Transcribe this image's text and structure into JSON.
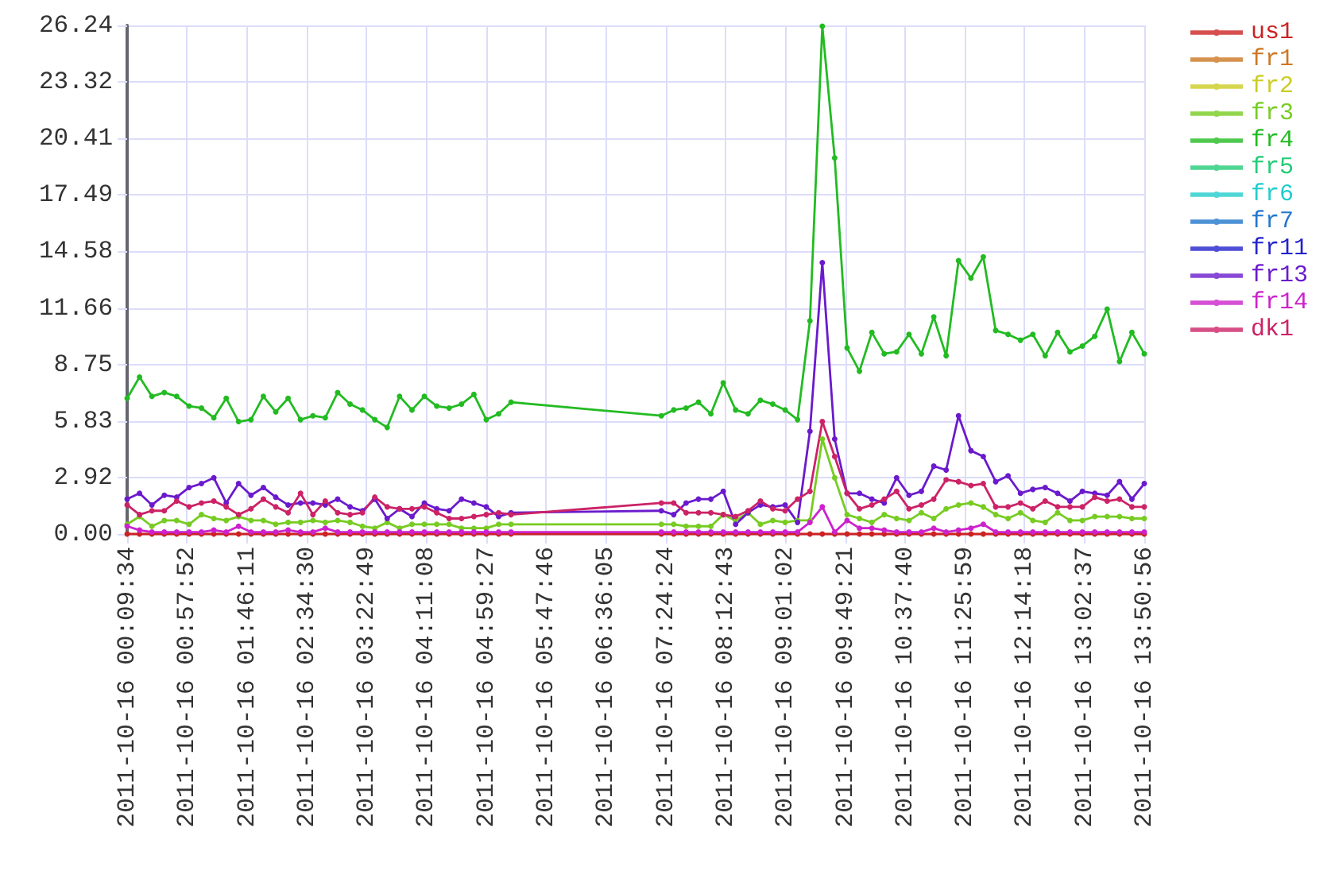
{
  "chart_data": {
    "type": "line",
    "x": [
      "2011-10-16T00:09:34",
      "2011-10-16T00:19:34",
      "2011-10-16T00:29:34",
      "2011-10-16T00:39:34",
      "2011-10-16T00:49:34",
      "2011-10-16T00:59:34",
      "2011-10-16T01:09:34",
      "2011-10-16T01:19:34",
      "2011-10-16T01:29:34",
      "2011-10-16T01:39:34",
      "2011-10-16T01:49:34",
      "2011-10-16T01:59:34",
      "2011-10-16T02:09:34",
      "2011-10-16T02:19:34",
      "2011-10-16T02:29:34",
      "2011-10-16T02:39:34",
      "2011-10-16T02:49:34",
      "2011-10-16T02:59:34",
      "2011-10-16T03:09:34",
      "2011-10-16T03:19:34",
      "2011-10-16T03:29:34",
      "2011-10-16T03:39:34",
      "2011-10-16T03:49:34",
      "2011-10-16T03:59:34",
      "2011-10-16T04:09:34",
      "2011-10-16T04:19:34",
      "2011-10-16T04:29:34",
      "2011-10-16T04:39:34",
      "2011-10-16T04:49:34",
      "2011-10-16T04:59:34",
      "2011-10-16T05:09:34",
      "2011-10-16T05:19:34",
      "2011-10-16T07:20:56",
      "2011-10-16T07:30:56",
      "2011-10-16T07:40:56",
      "2011-10-16T07:50:56",
      "2011-10-16T08:00:56",
      "2011-10-16T08:10:56",
      "2011-10-16T08:20:56",
      "2011-10-16T08:30:56",
      "2011-10-16T08:40:56",
      "2011-10-16T08:50:56",
      "2011-10-16T09:00:56",
      "2011-10-16T09:10:56",
      "2011-10-16T09:20:56",
      "2011-10-16T09:30:56",
      "2011-10-16T09:40:56",
      "2011-10-16T09:50:56",
      "2011-10-16T10:00:56",
      "2011-10-16T10:10:56",
      "2011-10-16T10:20:56",
      "2011-10-16T10:30:56",
      "2011-10-16T10:40:56",
      "2011-10-16T10:50:56",
      "2011-10-16T11:00:56",
      "2011-10-16T11:10:56",
      "2011-10-16T11:20:56",
      "2011-10-16T11:30:56",
      "2011-10-16T11:40:56",
      "2011-10-16T11:50:56",
      "2011-10-16T12:00:56",
      "2011-10-16T12:10:56",
      "2011-10-16T12:20:56",
      "2011-10-16T12:30:56",
      "2011-10-16T12:40:56",
      "2011-10-16T12:50:56",
      "2011-10-16T13:00:56",
      "2011-10-16T13:10:56",
      "2011-10-16T13:20:56",
      "2011-10-16T13:30:56",
      "2011-10-16T13:40:56",
      "2011-10-16T13:50:56"
    ],
    "series": [
      {
        "name": "us1",
        "color": "#cc2222",
        "values": [
          0,
          0,
          0,
          0,
          0,
          0,
          0,
          0,
          0,
          0,
          0,
          0,
          0,
          0,
          0,
          0,
          0,
          0,
          0,
          0,
          0,
          0,
          0,
          0,
          0,
          0,
          0,
          0,
          0,
          0,
          0,
          0,
          0,
          0,
          0,
          0,
          0,
          0,
          0,
          0,
          0,
          0,
          0,
          0,
          0,
          0,
          0,
          0,
          0,
          0,
          0,
          0,
          0,
          0,
          0,
          0,
          0,
          0,
          0,
          0,
          0,
          0,
          0,
          0,
          0,
          0,
          0,
          0,
          0,
          0,
          0,
          0
        ]
      },
      {
        "name": "fr1",
        "color": "#cc7722",
        "values": [
          null,
          null,
          null,
          null,
          null,
          null,
          null,
          null,
          null,
          null,
          null,
          null,
          null,
          null,
          null,
          null,
          null,
          null,
          null,
          null,
          null,
          null,
          null,
          null,
          null,
          null,
          null,
          null,
          null,
          null,
          null,
          null,
          null,
          null,
          null,
          null,
          null,
          null,
          null,
          null,
          null,
          null,
          null,
          null,
          null,
          null,
          null,
          null,
          null,
          null,
          null,
          null,
          null,
          null,
          null,
          null,
          null,
          null,
          null,
          null,
          null,
          null,
          null,
          null,
          null,
          null,
          null,
          null,
          null,
          null,
          null,
          null
        ]
      },
      {
        "name": "fr2",
        "color": "#cccc22",
        "values": [
          null,
          null,
          null,
          null,
          null,
          null,
          null,
          null,
          null,
          null,
          null,
          null,
          null,
          null,
          null,
          null,
          null,
          null,
          null,
          null,
          null,
          null,
          null,
          null,
          null,
          null,
          null,
          null,
          null,
          null,
          null,
          null,
          null,
          null,
          null,
          null,
          null,
          null,
          null,
          null,
          null,
          null,
          null,
          null,
          null,
          null,
          null,
          null,
          null,
          null,
          null,
          null,
          null,
          null,
          null,
          null,
          null,
          null,
          null,
          null,
          null,
          null,
          null,
          null,
          null,
          null,
          null,
          null,
          null,
          null,
          null,
          null
        ]
      },
      {
        "name": "fr3",
        "color": "#77cc22",
        "values": [
          0.5,
          0.9,
          0.4,
          0.7,
          0.7,
          0.5,
          1.0,
          0.8,
          0.7,
          0.9,
          0.7,
          0.7,
          0.5,
          0.6,
          0.6,
          0.7,
          0.6,
          0.7,
          0.6,
          0.4,
          0.3,
          0.6,
          0.3,
          0.5,
          0.5,
          0.5,
          0.5,
          0.3,
          0.3,
          0.3,
          0.5,
          0.5,
          0.5,
          0.5,
          0.4,
          0.4,
          0.4,
          1.0,
          0.7,
          1.1,
          0.5,
          0.7,
          0.6,
          0.7,
          0.7,
          4.9,
          2.9,
          1.0,
          0.8,
          0.6,
          1.0,
          0.8,
          0.7,
          1.1,
          0.8,
          1.3,
          1.5,
          1.6,
          1.4,
          1.0,
          0.8,
          1.1,
          0.7,
          0.6,
          1.1,
          0.7,
          0.7,
          0.9,
          0.9,
          0.9,
          0.8,
          0.8
        ]
      },
      {
        "name": "fr4",
        "color": "#22bb22",
        "values": [
          7.0,
          8.1,
          7.1,
          7.3,
          7.1,
          6.6,
          6.5,
          6.0,
          7.0,
          5.8,
          5.9,
          7.1,
          6.3,
          7.0,
          5.9,
          6.1,
          6.0,
          7.3,
          6.7,
          6.4,
          5.9,
          5.5,
          7.1,
          6.4,
          7.1,
          6.6,
          6.5,
          6.7,
          7.2,
          5.9,
          6.2,
          6.8,
          6.1,
          6.4,
          6.5,
          6.8,
          6.2,
          7.8,
          6.4,
          6.2,
          6.9,
          6.7,
          6.4,
          5.9,
          11.0,
          26.2,
          19.4,
          9.6,
          8.4,
          10.4,
          9.3,
          9.4,
          10.3,
          9.3,
          11.2,
          9.2,
          14.1,
          13.2,
          14.3,
          10.5,
          10.3,
          10.0,
          10.3,
          9.2,
          10.4,
          9.4,
          9.7,
          10.2,
          11.6,
          8.9,
          10.4,
          9.3
        ]
      },
      {
        "name": "fr5",
        "color": "#22cc77",
        "values": [
          null,
          null,
          null,
          null,
          null,
          null,
          null,
          null,
          null,
          null,
          null,
          null,
          null,
          null,
          null,
          null,
          null,
          null,
          null,
          null,
          null,
          null,
          null,
          null,
          null,
          null,
          null,
          null,
          null,
          null,
          null,
          null,
          null,
          null,
          null,
          null,
          null,
          null,
          null,
          null,
          null,
          null,
          null,
          null,
          null,
          null,
          null,
          null,
          null,
          null,
          null,
          null,
          null,
          null,
          null,
          null,
          null,
          null,
          null,
          null,
          null,
          null,
          null,
          null,
          null,
          null,
          null,
          null,
          null,
          null,
          null,
          null
        ]
      },
      {
        "name": "fr6",
        "color": "#22cccc",
        "values": [
          null,
          null,
          null,
          null,
          null,
          null,
          null,
          null,
          null,
          null,
          null,
          null,
          null,
          null,
          null,
          null,
          null,
          null,
          null,
          null,
          null,
          null,
          null,
          null,
          null,
          null,
          null,
          null,
          null,
          null,
          null,
          null,
          null,
          null,
          null,
          null,
          null,
          null,
          null,
          null,
          null,
          null,
          null,
          null,
          null,
          null,
          null,
          null,
          null,
          null,
          null,
          null,
          null,
          null,
          null,
          null,
          null,
          null,
          null,
          null,
          null,
          null,
          null,
          null,
          null,
          null,
          null,
          null,
          null,
          null,
          null,
          null
        ]
      },
      {
        "name": "fr7",
        "color": "#2277cc",
        "values": [
          null,
          null,
          null,
          null,
          null,
          null,
          null,
          null,
          null,
          null,
          null,
          null,
          null,
          null,
          null,
          null,
          null,
          null,
          null,
          null,
          null,
          null,
          null,
          null,
          null,
          null,
          null,
          null,
          null,
          null,
          null,
          null,
          null,
          null,
          null,
          null,
          null,
          null,
          null,
          null,
          null,
          null,
          null,
          null,
          null,
          null,
          null,
          null,
          null,
          null,
          null,
          null,
          null,
          null,
          null,
          null,
          null,
          null,
          null,
          null,
          null,
          null,
          null,
          null,
          null,
          null,
          null,
          null,
          null,
          null,
          null,
          null
        ]
      },
      {
        "name": "fr11",
        "color": "#2222cc",
        "values": [
          null,
          null,
          null,
          null,
          null,
          null,
          null,
          null,
          null,
          null,
          null,
          null,
          null,
          null,
          null,
          null,
          null,
          null,
          null,
          null,
          null,
          null,
          null,
          null,
          null,
          null,
          null,
          null,
          null,
          null,
          null,
          null,
          null,
          null,
          null,
          null,
          null,
          null,
          null,
          null,
          null,
          null,
          null,
          null,
          null,
          null,
          null,
          null,
          null,
          null,
          null,
          null,
          null,
          null,
          null,
          null,
          null,
          null,
          null,
          null,
          null,
          null,
          null,
          null,
          null,
          null,
          null,
          null,
          null,
          null,
          null,
          null
        ]
      },
      {
        "name": "fr13",
        "color": "#6a1acc",
        "values": [
          1.8,
          2.1,
          1.5,
          2.0,
          1.9,
          2.4,
          2.6,
          2.9,
          1.6,
          2.6,
          2.0,
          2.4,
          1.9,
          1.5,
          1.6,
          1.6,
          1.5,
          1.8,
          1.4,
          1.2,
          1.8,
          0.8,
          1.3,
          0.9,
          1.6,
          1.3,
          1.2,
          1.8,
          1.6,
          1.4,
          0.9,
          1.1,
          1.2,
          1.0,
          1.6,
          1.8,
          1.8,
          2.2,
          0.5,
          1.1,
          1.5,
          1.4,
          1.5,
          0.6,
          5.3,
          14.0,
          4.9,
          2.1,
          2.1,
          1.8,
          1.6,
          2.9,
          2.0,
          2.2,
          3.5,
          3.3,
          6.1,
          4.3,
          4.0,
          2.7,
          3.0,
          2.1,
          2.3,
          2.4,
          2.1,
          1.7,
          2.2,
          2.1,
          2.0,
          2.7,
          1.8,
          2.6
        ]
      },
      {
        "name": "fr14",
        "color": "#cc22cc",
        "values": [
          0.4,
          0.2,
          0.1,
          0.1,
          0.1,
          0.1,
          0.1,
          0.2,
          0.1,
          0.4,
          0.1,
          0.1,
          0.1,
          0.2,
          0.1,
          0.1,
          0.3,
          0.1,
          0.1,
          0.1,
          0.1,
          0.1,
          0.1,
          0.1,
          0.1,
          0.1,
          0.1,
          0.1,
          0.1,
          0.1,
          0.1,
          0.1,
          0.1,
          0.1,
          0.1,
          0.1,
          0.1,
          0.1,
          0.1,
          0.1,
          0.1,
          0.1,
          0.1,
          0.1,
          0.6,
          1.4,
          0.1,
          0.7,
          0.3,
          0.3,
          0.2,
          0.1,
          0.1,
          0.1,
          0.3,
          0.1,
          0.2,
          0.3,
          0.5,
          0.1,
          0.1,
          0.1,
          0.1,
          0.1,
          0.1,
          0.1,
          0.1,
          0.1,
          0.1,
          0.1,
          0.1,
          0.1
        ]
      },
      {
        "name": "dk1",
        "color": "#cc2266",
        "values": [
          1.5,
          1.0,
          1.2,
          1.2,
          1.7,
          1.4,
          1.6,
          1.7,
          1.4,
          1.0,
          1.3,
          1.8,
          1.4,
          1.1,
          2.1,
          1.0,
          1.7,
          1.1,
          1.0,
          1.1,
          1.9,
          1.4,
          1.3,
          1.3,
          1.4,
          1.1,
          0.8,
          0.8,
          0.9,
          1.0,
          1.1,
          1.0,
          1.6,
          1.6,
          1.1,
          1.1,
          1.1,
          1.0,
          0.9,
          1.2,
          1.7,
          1.3,
          1.2,
          1.8,
          2.2,
          5.8,
          4.0,
          2.1,
          1.3,
          1.5,
          1.8,
          2.2,
          1.3,
          1.5,
          1.8,
          2.8,
          2.7,
          2.5,
          2.6,
          1.4,
          1.4,
          1.6,
          1.3,
          1.7,
          1.4,
          1.4,
          1.4,
          1.9,
          1.7,
          1.8,
          1.4,
          1.4
        ]
      }
    ],
    "xlim": [
      "2011-10-16T00:09:34",
      "2011-10-16T13:50:56"
    ],
    "xticks": [
      {
        "value": "2011-10-16T00:09:34",
        "label": "2011-10-16 00:09:34"
      },
      {
        "value": "2011-10-16T00:57:52",
        "label": "2011-10-16 00:57:52"
      },
      {
        "value": "2011-10-16T01:46:11",
        "label": "2011-10-16 01:46:11"
      },
      {
        "value": "2011-10-16T02:34:30",
        "label": "2011-10-16 02:34:30"
      },
      {
        "value": "2011-10-16T03:22:49",
        "label": "2011-10-16 03:22:49"
      },
      {
        "value": "2011-10-16T04:11:08",
        "label": "2011-10-16 04:11:08"
      },
      {
        "value": "2011-10-16T04:59:27",
        "label": "2011-10-16 04:59:27"
      },
      {
        "value": "2011-10-16T05:47:46",
        "label": "2011-10-16 05:47:46"
      },
      {
        "value": "2011-10-16T06:36:05",
        "label": "2011-10-16 06:36:05"
      },
      {
        "value": "2011-10-16T07:24:24",
        "label": "2011-10-16 07:24:24"
      },
      {
        "value": "2011-10-16T08:12:43",
        "label": "2011-10-16 08:12:43"
      },
      {
        "value": "2011-10-16T09:01:02",
        "label": "2011-10-16 09:01:02"
      },
      {
        "value": "2011-10-16T09:49:21",
        "label": "2011-10-16 09:49:21"
      },
      {
        "value": "2011-10-16T10:37:40",
        "label": "2011-10-16 10:37:40"
      },
      {
        "value": "2011-10-16T11:25:59",
        "label": "2011-10-16 11:25:59"
      },
      {
        "value": "2011-10-16T12:14:18",
        "label": "2011-10-16 12:14:18"
      },
      {
        "value": "2011-10-16T13:02:37",
        "label": "2011-10-16 13:02:37"
      },
      {
        "value": "2011-10-16T13:50:56",
        "label": "2011-10-16 13:50:56"
      }
    ],
    "ylim": [
      0,
      26.24
    ],
    "yticks": [
      {
        "value": 0,
        "label": "0.00"
      },
      2.92,
      5.83,
      8.75,
      11.66,
      14.58,
      17.49,
      20.41,
      23.32,
      26.24
    ],
    "grid": true,
    "legend": "top right",
    "marker": "circle",
    "line_style": "solid"
  }
}
